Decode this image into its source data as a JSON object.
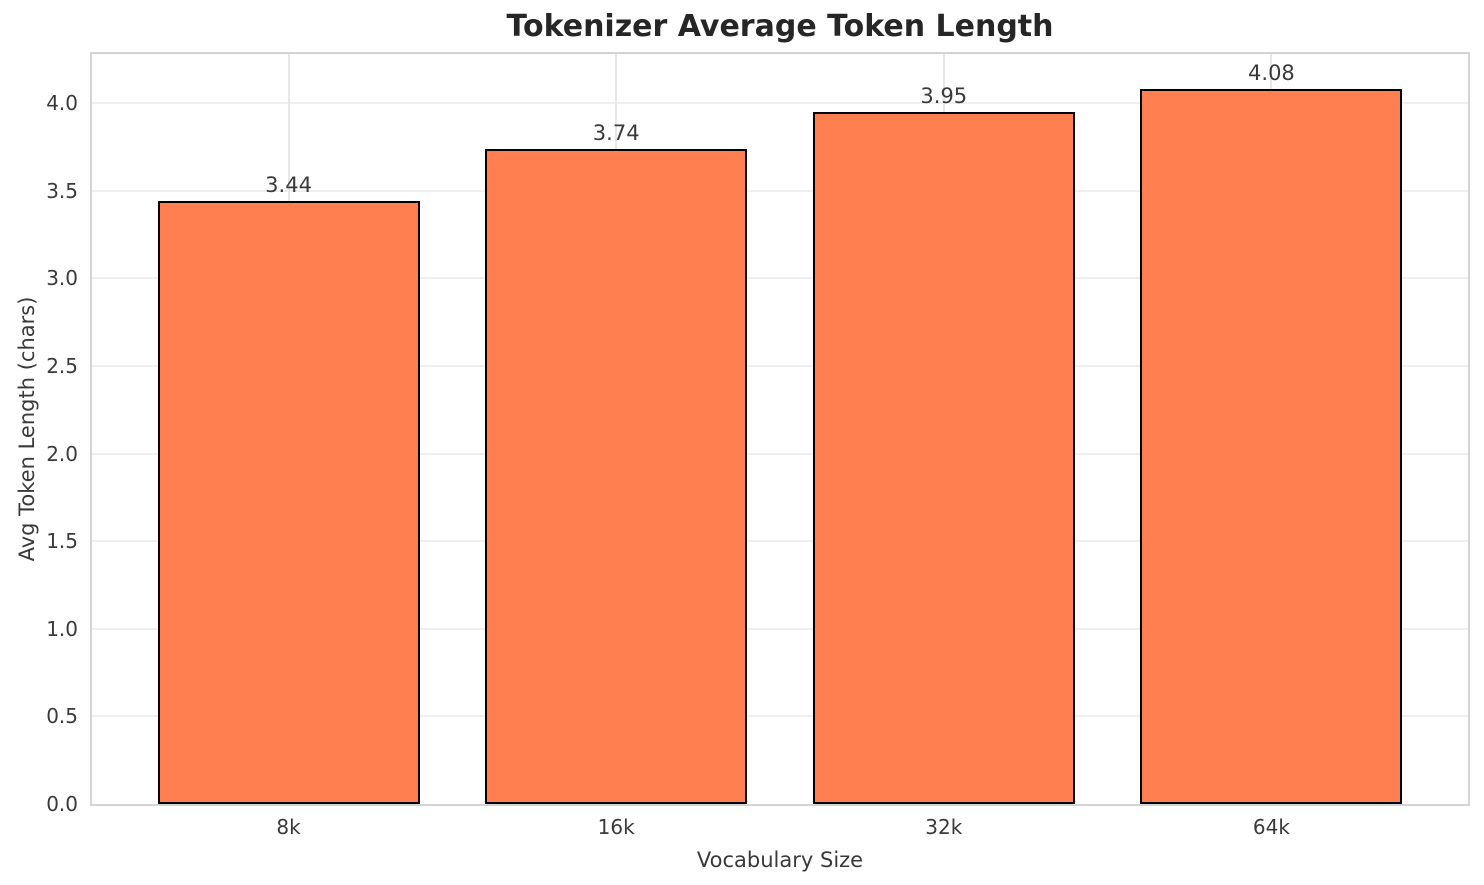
{
  "chart_data": {
    "type": "bar",
    "title": "Tokenizer Average Token Length",
    "xlabel": "Vocabulary Size",
    "ylabel": "Avg Token Length (chars)",
    "categories": [
      "8k",
      "16k",
      "32k",
      "64k"
    ],
    "values": [
      3.44,
      3.74,
      3.95,
      4.08
    ],
    "value_labels": [
      "3.44",
      "3.74",
      "3.95",
      "4.08"
    ],
    "yticks": [
      0.0,
      0.5,
      1.0,
      1.5,
      2.0,
      2.5,
      3.0,
      3.5,
      4.0
    ],
    "ytick_labels": [
      "0.0",
      "0.5",
      "1.0",
      "1.5",
      "2.0",
      "2.5",
      "3.0",
      "3.5",
      "4.0"
    ],
    "ylim": [
      0,
      4.28
    ],
    "xlim": [
      -0.6,
      3.6
    ],
    "bar_width": 0.8,
    "grid": true,
    "legend": "none",
    "colors": {
      "bar_fill": "#FF7F50",
      "bar_edge": "#000000",
      "grid": "#efefef",
      "spine": "#d4d4d4",
      "title_text": "#262626",
      "tick_text": "#3a3a3a",
      "background": "#ffffff"
    }
  }
}
